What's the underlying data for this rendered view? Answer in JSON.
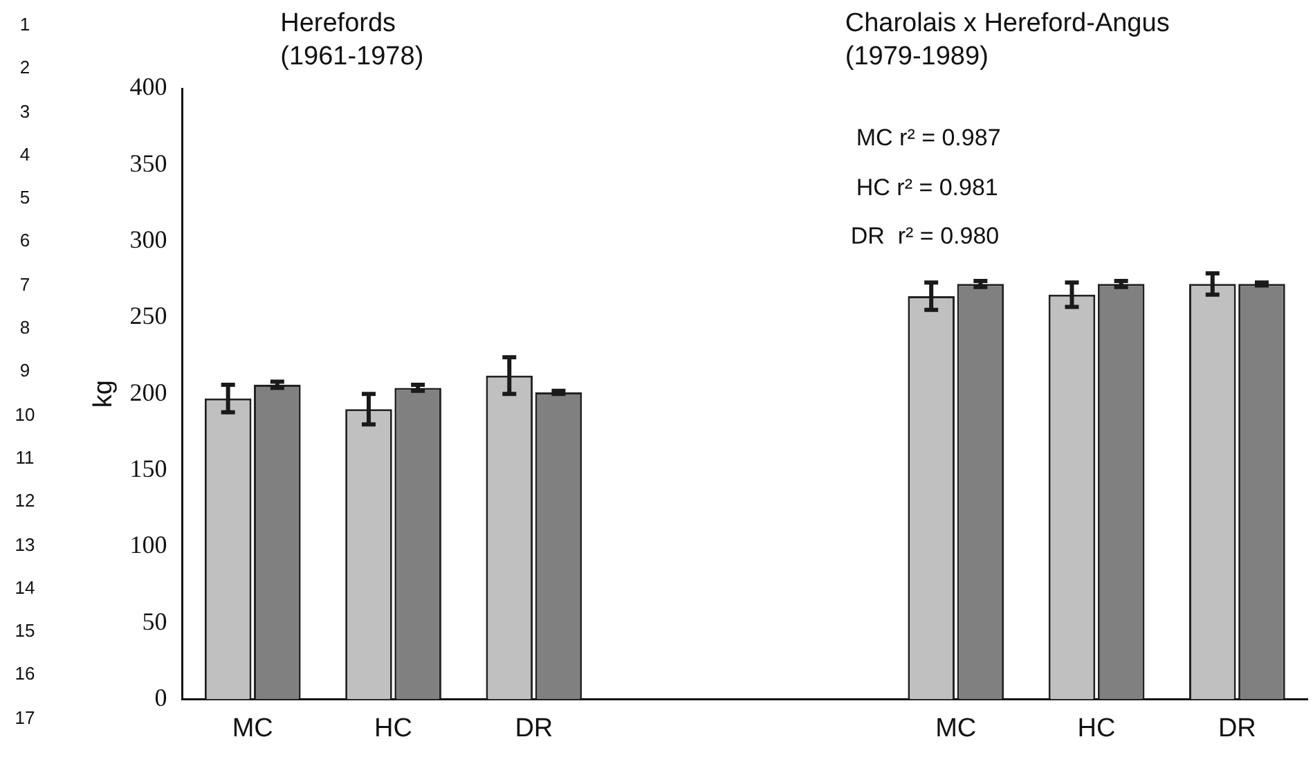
{
  "chart_data": {
    "type": "bar",
    "ylabel": "kg",
    "categories": [
      "MC",
      "HC",
      "DR",
      null,
      null,
      "MC",
      "HC",
      "DR"
    ],
    "series": [
      {
        "color": "#c0c0c0",
        "values": [
          197,
          190,
          212,
          null,
          null,
          264,
          265,
          272
        ],
        "errors": [
          9,
          10,
          12,
          null,
          null,
          9,
          8,
          7
        ]
      },
      {
        "color": "#808080",
        "values": [
          206,
          204,
          201,
          null,
          null,
          272,
          272,
          272
        ],
        "errors": [
          2,
          2,
          1,
          null,
          null,
          2,
          2,
          1
        ]
      }
    ],
    "ylim": [
      0,
      400
    ],
    "yticks": [
      0,
      50,
      100,
      150,
      200,
      250,
      300,
      350,
      400
    ],
    "grid": false,
    "legend": false,
    "annotations": [
      "Herefords\n(1961-1978)",
      "Charolais x Hereford-Angus\n(1979-1989)",
      "MC r² = 0.987",
      "HC r² = 0.981",
      "DR  r² = 0.980",
      "1\n2\n3\n4\n5\n6\n7\n8\n9\n10\n11\n12\n13\n14\n15\n16\n17"
    ]
  }
}
